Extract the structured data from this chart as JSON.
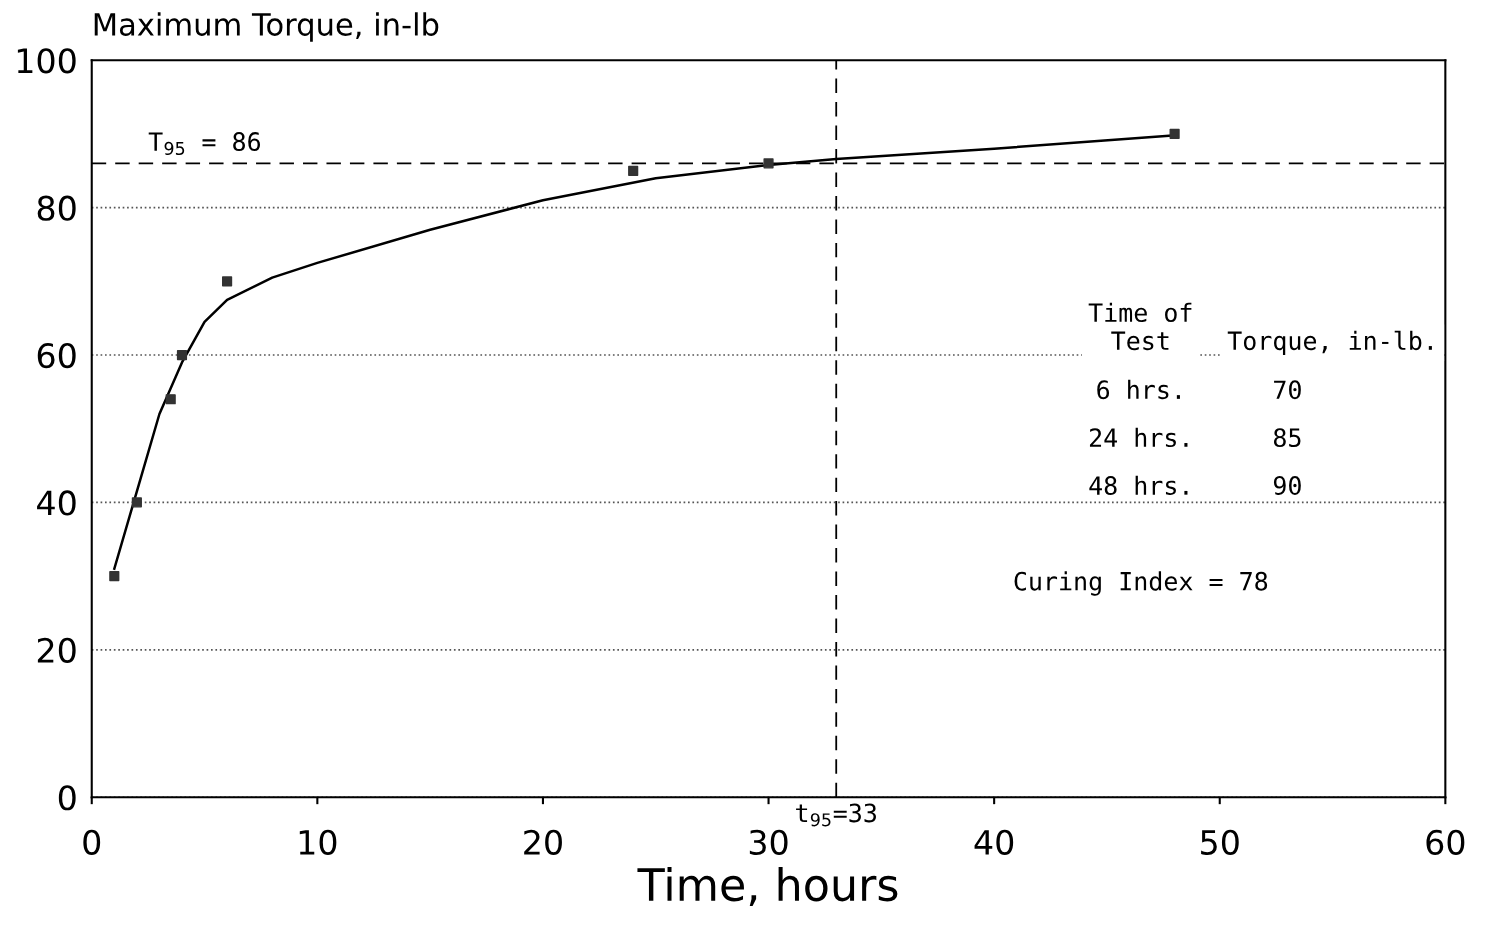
{
  "chart_data": {
    "type": "scatter",
    "ylabel": "Maximum Torque, in-lb",
    "xlabel": "Time, hours",
    "xlim": [
      0,
      60
    ],
    "ylim": [
      0,
      100
    ],
    "xticks": [
      0,
      10,
      20,
      30,
      40,
      50,
      60
    ],
    "yticks": [
      0,
      20,
      40,
      60,
      80,
      100
    ],
    "grid": "y",
    "series": [
      {
        "color": "#333333",
        "marker": "square",
        "x": [
          1,
          2,
          3.5,
          4,
          6,
          24,
          30,
          48
        ],
        "values": [
          30,
          40,
          54,
          60,
          70,
          85,
          86,
          90
        ]
      },
      {
        "type": "line",
        "color": "#000000",
        "marker": "none",
        "line_style": "solid",
        "x": [
          1,
          2,
          3,
          4,
          5,
          6,
          8,
          10,
          15,
          20,
          25,
          30,
          33,
          40,
          48
        ],
        "values": [
          31,
          41.5,
          52,
          59,
          64.5,
          67.5,
          70.5,
          72.5,
          77,
          81,
          84,
          85.8,
          86.6,
          88,
          89.8
        ]
      }
    ],
    "ref_lines": [
      {
        "axis": "y",
        "value": 86,
        "label": "T$_{95}$ = 86",
        "line_style": "dashed",
        "color": "#000000"
      },
      {
        "axis": "x",
        "value": 33,
        "label": "t$_{95}$=33",
        "line_style": "dashed",
        "color": "#000000"
      }
    ],
    "annotations": [
      "Time of\nTest",
      "Torque, in-lb.",
      "6 hrs.",
      "70",
      "24 hrs.",
      "85",
      "48 hrs.",
      "90",
      "Curing Index = 78"
    ]
  }
}
